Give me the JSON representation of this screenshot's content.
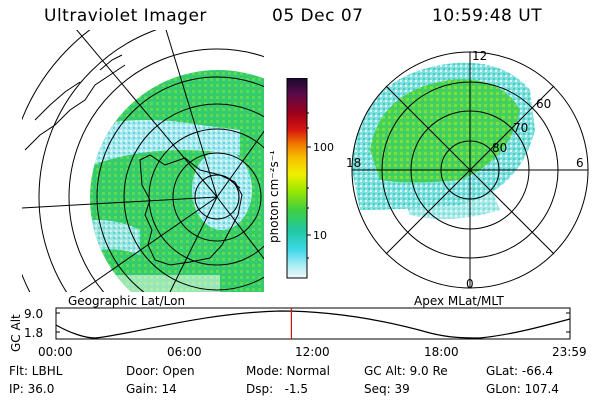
{
  "header": {
    "title": "Ultraviolet Imager",
    "date": "05 Dec 07",
    "time": "10:59:48 UT"
  },
  "colorbar": {
    "unit_label": "photon cm⁻²s⁻¹",
    "ticks": [
      "100",
      "10"
    ],
    "colors": [
      "#1a0a2e",
      "#3a0a4a",
      "#6a0a3a",
      "#a0001a",
      "#d01818",
      "#e84010",
      "#f08000",
      "#f8b000",
      "#f8e000",
      "#c8f000",
      "#80e020",
      "#40d040",
      "#20c8a0",
      "#40d8e8",
      "#a0e8f0",
      "#e0f4f8"
    ]
  },
  "left_panel": {
    "label": "Geographic Lat/Lon"
  },
  "right_panel": {
    "label": "Apex MLat/MLT",
    "mlt_labels": {
      "top": "12",
      "left": "18",
      "right": "6",
      "bottom": "0"
    },
    "lat_labels": [
      "60",
      "70",
      "80"
    ]
  },
  "altitude_plot": {
    "axis_label": "GC Alt",
    "yticks": [
      "9.0",
      "1.8"
    ],
    "xticks": [
      "00:00",
      "06:00",
      "12:00",
      "18:00",
      "23:59"
    ],
    "current_time_fraction": 0.458
  },
  "info": {
    "filter": "Flt: LBHL",
    "ip": "IP: 36.0",
    "door": "Door: Open",
    "gain": "Gain: 14",
    "mode": "Mode: Normal",
    "dsp": "Dsp:   -1.5",
    "gc_alt": "GC Alt: 9.0 Re",
    "seq": "Seq: 39",
    "glat": "GLat: -66.4",
    "glon": "GLon: 107.4"
  }
}
